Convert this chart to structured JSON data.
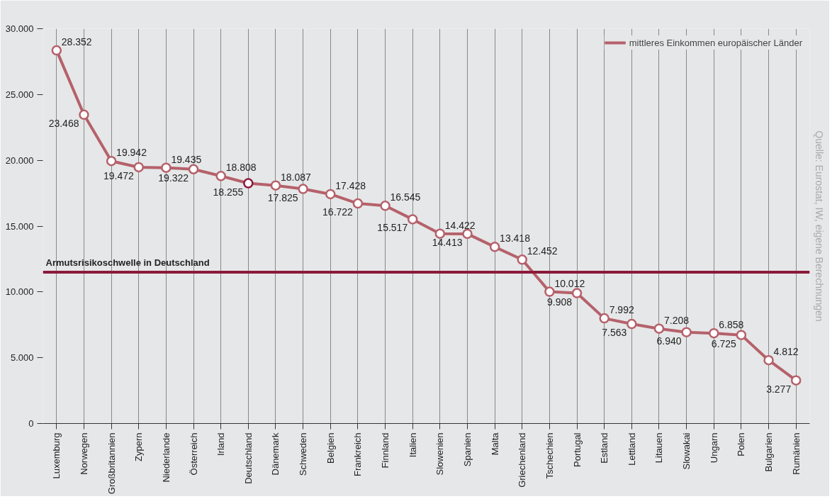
{
  "chart_data": {
    "type": "line",
    "categories": [
      "Luxemburg",
      "Norwegen",
      "Großbritannien",
      "Zypern",
      "Niederlande",
      "Österreich",
      "Irland",
      "Deutschland",
      "Dänemark",
      "Schweden",
      "Belgien",
      "Frankreich",
      "Finnland",
      "Italien",
      "Slowenien",
      "Spanien",
      "Malta",
      "Griechenland",
      "Tschechien",
      "Portugal",
      "Estland",
      "Lettland",
      "Litauen",
      "Slowakai",
      "Ungarn",
      "Polen",
      "Bulgarien",
      "Rumänien"
    ],
    "series": [
      {
        "name": "mittleres Einkommen europäischer Länder",
        "color": "#b5616b",
        "values": [
          28352,
          23468,
          19942,
          19472,
          19435,
          19322,
          18808,
          18255,
          18087,
          17825,
          17428,
          16722,
          16545,
          15517,
          14422,
          14413,
          13418,
          12452,
          10012,
          9908,
          7992,
          7563,
          7208,
          6940,
          6858,
          6725,
          4812,
          3277
        ],
        "value_labels": [
          "28.352",
          "23.468",
          "19.942",
          "19.472",
          "19.435",
          "19.322",
          "18.808",
          "18.255",
          "18.087",
          "17.825",
          "17.428",
          "16.722",
          "16.545",
          "15.517",
          "14.422",
          "14.413",
          "13.418",
          "12.452",
          "10.012",
          "9.908",
          "7.992",
          "7.563",
          "7.208",
          "6.940",
          "6.858",
          "6.725",
          "4.812",
          "3.277"
        ],
        "colors": [
          "#b5616b",
          "#b5616b",
          "#b5616b",
          "#b5616b",
          "#b5616b",
          "#b5616b",
          "#b5616b",
          "#8b1a3a",
          "#b5616b",
          "#b5616b",
          "#b5616b",
          "#b5616b",
          "#b5616b",
          "#b5616b",
          "#b5616b",
          "#b5616b",
          "#b5616b",
          "#b5616b",
          "#b5616b",
          "#b5616b",
          "#b5616b",
          "#b5616b",
          "#b5616b",
          "#b5616b",
          "#b5616b",
          "#b5616b",
          "#b5616b",
          "#b5616b"
        ]
      }
    ],
    "ylim": [
      0,
      30000
    ],
    "yticks": [
      {
        "value": 0,
        "label": "0"
      },
      {
        "value": 5000,
        "label": "5.000"
      },
      {
        "value": 10000,
        "label": "10.000"
      },
      {
        "value": 15000,
        "label": "15.000"
      },
      {
        "value": 20000,
        "label": "20.000"
      },
      {
        "value": 25000,
        "label": "25.000"
      },
      {
        "value": 30000,
        "label": "30.000"
      }
    ],
    "ref_lines": [
      {
        "axis": "y",
        "value": 11500,
        "label": "Armutsrisikoschwelle in Deutschland",
        "color": "#8b1a3a"
      }
    ],
    "annotations": [
      "Quelle: Eurostat, IW, eigene Berechnungen"
    ],
    "grid": "x",
    "legend": "top right",
    "marker": "circle",
    "line_style": "solid"
  }
}
